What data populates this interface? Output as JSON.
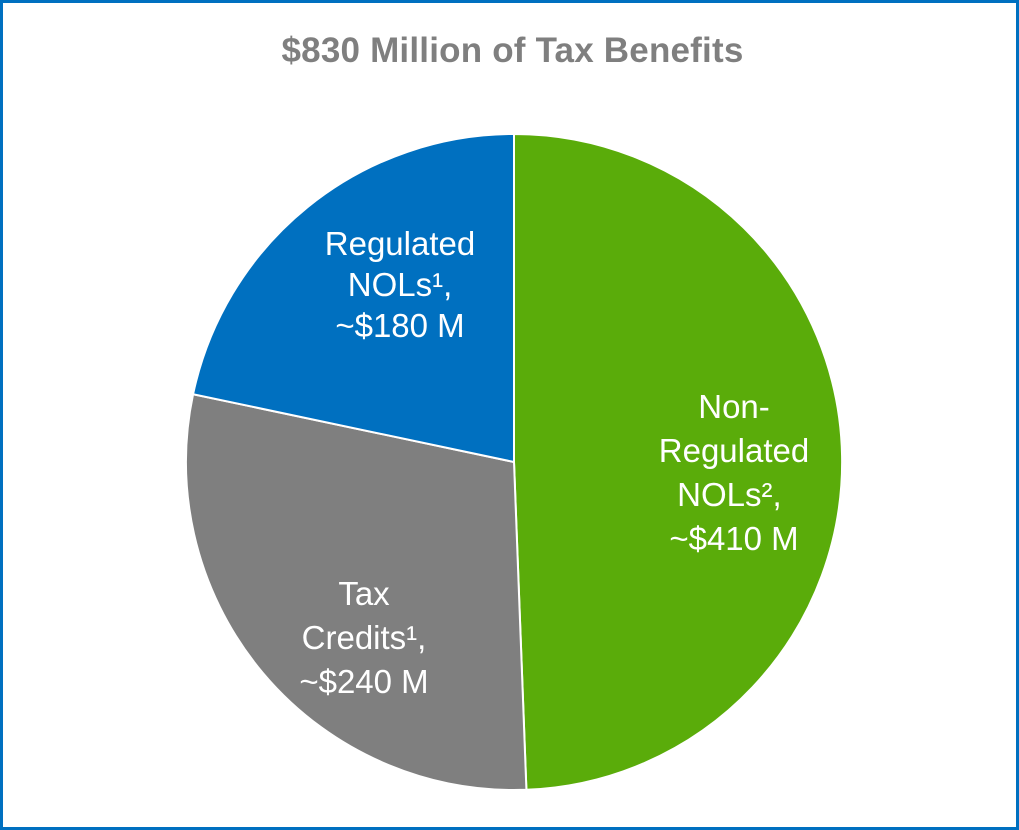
{
  "chart_data": {
    "type": "pie",
    "title": "$830 Million of Tax Benefits",
    "start_angle_deg": 0,
    "direction": "clockwise",
    "slices": [
      {
        "lines": [
          "Non-",
          "Regulated",
          "NOLs², ",
          "~$410 M"
        ],
        "value": 410,
        "color": "#5aac0a"
      },
      {
        "lines": [
          "Tax",
          "Credits¹,",
          "~$240 M"
        ],
        "value": 240,
        "color": "#7f7f7f"
      },
      {
        "lines": [
          "Regulated",
          "NOLs¹,",
          "~$180 M"
        ],
        "value": 180,
        "color": "#0070c0"
      }
    ]
  }
}
